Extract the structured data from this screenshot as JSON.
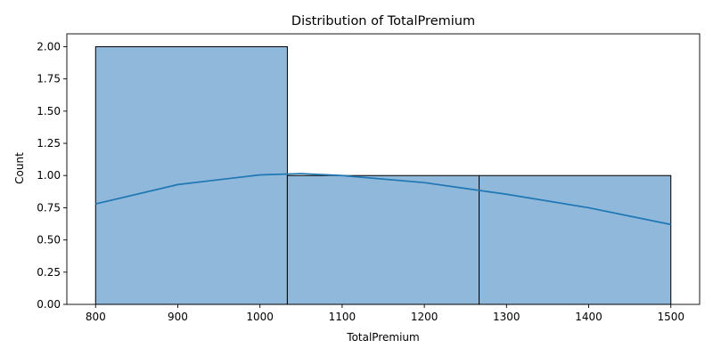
{
  "chart_data": {
    "type": "bar",
    "subtype": "histogram-with-kde",
    "title": "Distribution of TotalPremium",
    "xlabel": "TotalPremium",
    "ylabel": "Count",
    "bins": [
      {
        "start": 800,
        "end": 1033.33,
        "count": 2
      },
      {
        "start": 1033.33,
        "end": 1266.67,
        "count": 1
      },
      {
        "start": 1266.67,
        "end": 1500,
        "count": 1
      }
    ],
    "kde": {
      "x": [
        800,
        900,
        1000,
        1050,
        1100,
        1200,
        1300,
        1400,
        1500
      ],
      "y": [
        0.78,
        0.93,
        1.005,
        1.015,
        1.0,
        0.945,
        0.855,
        0.75,
        0.62
      ]
    },
    "xlim": [
      765,
      1535
    ],
    "ylim": [
      0,
      2.1
    ],
    "xticks": [
      "800",
      "900",
      "1000",
      "1100",
      "1200",
      "1300",
      "1400",
      "1500"
    ],
    "yticks": [
      "0.00",
      "0.25",
      "0.50",
      "0.75",
      "1.00",
      "1.25",
      "1.50",
      "1.75",
      "2.00"
    ],
    "grid": false,
    "colors": {
      "bar_fill": "#8fb8da",
      "bar_edge": "#000000",
      "kde_line": "#1f77b4"
    }
  }
}
